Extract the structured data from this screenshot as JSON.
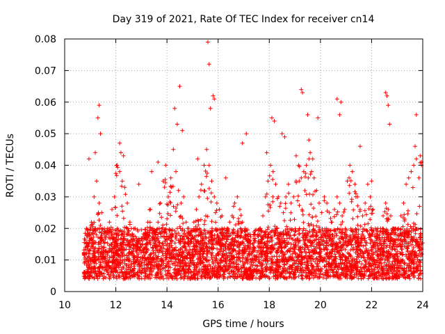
{
  "chart_data": {
    "type": "scatter",
    "title": "Day 319 of 2021, Rate Of TEC Index for receiver cn14",
    "xlabel": "GPS time / hours",
    "ylabel": "ROTI / TECUs",
    "xlim": [
      10,
      24
    ],
    "ylim": [
      0,
      0.08
    ],
    "x_ticks": [
      10,
      12,
      14,
      16,
      18,
      20,
      22,
      24
    ],
    "x_tick_labels": [
      "10",
      "12",
      "14",
      "16",
      "18",
      "20",
      "22",
      "24"
    ],
    "y_ticks": [
      0,
      0.01,
      0.02,
      0.03,
      0.04,
      0.05,
      0.06,
      0.07,
      0.08
    ],
    "y_tick_labels": [
      "0",
      "0.01",
      "0.02",
      "0.03",
      "0.04",
      "0.05",
      "0.06",
      "0.07",
      "0.08"
    ],
    "grid": true,
    "marker": "+",
    "color": "#ff0000",
    "series": [
      {
        "name": "ROTI",
        "x": [
          10.75,
          10.85,
          10.95,
          11.05,
          11.15,
          11.25,
          11.35,
          11.45,
          11.55,
          11.65,
          11.75,
          11.85,
          11.95,
          12.05,
          12.15,
          12.25,
          12.35,
          12.45,
          12.55,
          12.65,
          12.75,
          12.85,
          12.95,
          13.05,
          13.15,
          13.25,
          13.35,
          13.45,
          13.55,
          13.65,
          13.75,
          13.85,
          13.95,
          14.05,
          14.15,
          14.25,
          14.35,
          14.45,
          14.55,
          14.65,
          14.75,
          14.85,
          14.95,
          15.05,
          15.15,
          15.25,
          15.35,
          15.45,
          15.55,
          15.65,
          15.75,
          15.85,
          15.95,
          16.05,
          16.15,
          16.25,
          16.35,
          16.45,
          16.55,
          16.65,
          16.75,
          16.85,
          16.95,
          17.05,
          17.15,
          17.25,
          17.35,
          17.45,
          17.55,
          17.65,
          17.75,
          17.85,
          17.95,
          18.05,
          18.15,
          18.25,
          18.35,
          18.45,
          18.55,
          18.65,
          18.75,
          18.85,
          18.95,
          19.05,
          19.15,
          19.25,
          19.35,
          19.45,
          19.55,
          19.65,
          19.75,
          19.85,
          19.95,
          20.05,
          20.15,
          20.25,
          20.35,
          20.45,
          20.55,
          20.65,
          20.75,
          20.85,
          20.95,
          21.05,
          21.15,
          21.25,
          21.35,
          21.45,
          21.55,
          21.65,
          21.75,
          21.85,
          21.95,
          22.05,
          22.15,
          22.25,
          22.35,
          22.45,
          22.55,
          22.65,
          22.75,
          22.85,
          22.95,
          23.05,
          23.15,
          23.25,
          23.35,
          23.45,
          23.55,
          23.65,
          23.75,
          23.85,
          23.95,
          11.3,
          11.35,
          11.4,
          10.95,
          11.2,
          12.15,
          12.2,
          12.3,
          14.5,
          14.3,
          15.6,
          15.65,
          15.8,
          15.85,
          15.7,
          14.4,
          14.6,
          18.1,
          18.2,
          18.5,
          18.6,
          19.25,
          19.3,
          19.5,
          19.55,
          19.6,
          19.7,
          19.9,
          20.65,
          20.8,
          20.75,
          22.55,
          22.6,
          22.65,
          22.7,
          23.7,
          23.75,
          23.9,
          23.95,
          17.1,
          16.95,
          12.9,
          13.4,
          15.2,
          16.3,
          21.55,
          22.0,
          17.9,
          19.05,
          13.65
        ],
        "y": [
          0.012,
          0.02,
          0.018,
          0.022,
          0.03,
          0.035,
          0.028,
          0.025,
          0.02,
          0.018,
          0.022,
          0.026,
          0.03,
          0.04,
          0.038,
          0.035,
          0.033,
          0.028,
          0.022,
          0.018,
          0.02,
          0.016,
          0.014,
          0.015,
          0.018,
          0.022,
          0.026,
          0.02,
          0.016,
          0.022,
          0.028,
          0.035,
          0.04,
          0.03,
          0.036,
          0.045,
          0.038,
          0.032,
          0.028,
          0.03,
          0.022,
          0.02,
          0.018,
          0.022,
          0.026,
          0.03,
          0.034,
          0.04,
          0.045,
          0.04,
          0.035,
          0.03,
          0.028,
          0.026,
          0.024,
          0.02,
          0.02,
          0.022,
          0.024,
          0.028,
          0.03,
          0.026,
          0.022,
          0.02,
          0.018,
          0.016,
          0.015,
          0.016,
          0.018,
          0.02,
          0.024,
          0.03,
          0.035,
          0.04,
          0.038,
          0.034,
          0.03,
          0.028,
          0.025,
          0.03,
          0.034,
          0.028,
          0.03,
          0.035,
          0.04,
          0.036,
          0.038,
          0.04,
          0.042,
          0.038,
          0.036,
          0.032,
          0.028,
          0.025,
          0.03,
          0.028,
          0.025,
          0.022,
          0.026,
          0.03,
          0.028,
          0.024,
          0.026,
          0.035,
          0.04,
          0.038,
          0.034,
          0.03,
          0.026,
          0.024,
          0.028,
          0.034,
          0.03,
          0.026,
          0.02,
          0.018,
          0.02,
          0.024,
          0.028,
          0.026,
          0.024,
          0.02,
          0.018,
          0.02,
          0.024,
          0.028,
          0.034,
          0.036,
          0.038,
          0.04,
          0.042,
          0.036,
          0.04,
          0.055,
          0.059,
          0.05,
          0.042,
          0.044,
          0.047,
          0.044,
          0.043,
          0.065,
          0.058,
          0.079,
          0.072,
          0.062,
          0.061,
          0.058,
          0.053,
          0.051,
          0.055,
          0.054,
          0.05,
          0.049,
          0.064,
          0.063,
          0.056,
          0.048,
          0.044,
          0.042,
          0.055,
          0.061,
          0.06,
          0.056,
          0.063,
          0.062,
          0.059,
          0.053,
          0.046,
          0.056,
          0.043,
          0.041,
          0.05,
          0.047,
          0.034,
          0.038,
          0.042,
          0.036,
          0.046,
          0.035,
          0.044,
          0.043,
          0.041
        ]
      }
    ],
    "dense_band": {
      "description_x_range": [
        10.75,
        24.0
      ],
      "typical_range": [
        0.004,
        0.02
      ]
    }
  }
}
